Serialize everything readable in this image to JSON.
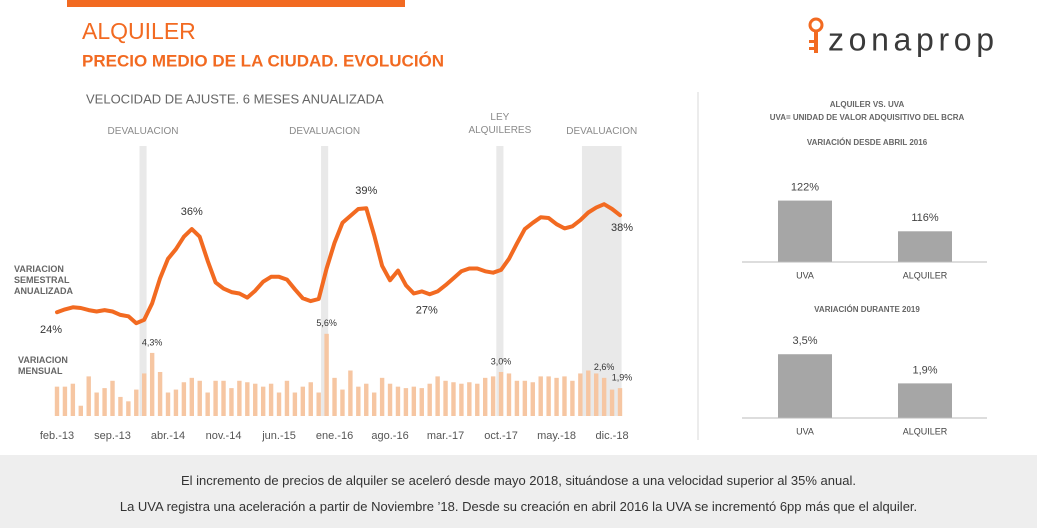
{
  "header": {
    "title": "ALQUILER",
    "subtitle": "PRECIO MEDIO DE LA CIUDAD. EVOLUCIÓN",
    "logo": "zonaprop"
  },
  "panel": {
    "title": "ALQUILER VS. UVA",
    "subtitle": "UVA= UNIDAD DE VALOR ADQUISITIVO DEL BCRA"
  },
  "footer": [
    "El incremento de precios de alquiler se aceleró desde mayo 2018, situándose a una velocidad superior al 35% anual.",
    "La UVA registra una aceleración a partir de Noviembre ’18. Desde su creación en abril 2016 la UVA se incrementó 6pp más que el alquiler."
  ],
  "chart_data": [
    {
      "type": "combo",
      "title": "VELOCIDAD DE AJUSTE. 6 MESES ANUALIZADA",
      "categories": [
        "feb.-13",
        null,
        null,
        null,
        null,
        null,
        null,
        "sep.-13",
        null,
        null,
        null,
        null,
        null,
        null,
        "abr.-14",
        null,
        null,
        null,
        null,
        null,
        null,
        "nov.-14",
        null,
        null,
        null,
        null,
        null,
        null,
        "jun.-15",
        null,
        null,
        null,
        null,
        null,
        null,
        "ene.-16",
        null,
        null,
        null,
        null,
        null,
        null,
        "ago.-16",
        null,
        null,
        null,
        null,
        null,
        null,
        "mar.-17",
        null,
        null,
        null,
        null,
        null,
        null,
        "oct.-17",
        null,
        null,
        null,
        null,
        null,
        null,
        "may.-18",
        null,
        null,
        null,
        null,
        null,
        null,
        "dic.-18",
        null
      ],
      "annotations": [
        "DEVALUACION",
        "DEVALUACION",
        "LEY ALQUILERES",
        "DEVALUACION"
      ],
      "ylim": [
        9,
        48
      ],
      "y2lim": [
        0,
        18.4
      ],
      "series": [
        {
          "name": "VARIACION SEMESTRAL ANUALIZADA",
          "type": "line",
          "color": "#f26a21",
          "values": [
            24,
            24.4,
            24.7,
            24.6,
            24.3,
            24.1,
            24.3,
            24.1,
            23.6,
            23.4,
            22.4,
            22.9,
            25.3,
            28.9,
            31.7,
            33.1,
            34.9,
            36,
            34.9,
            31.4,
            28.3,
            27.4,
            26.9,
            26.7,
            26.1,
            27.1,
            28.4,
            29.1,
            29.1,
            28.7,
            27.3,
            26,
            25.6,
            25.9,
            30.3,
            34,
            36.9,
            37.9,
            38.9,
            39,
            35.1,
            30.7,
            28.6,
            30,
            27.9,
            26.7,
            27,
            26.6,
            27,
            27.9,
            28.9,
            29.9,
            30.3,
            30.3,
            29.9,
            29.7,
            30.1,
            31.7,
            33.9,
            36,
            36.9,
            37.7,
            37.6,
            36.7,
            36.1,
            36.4,
            37.3,
            38.4,
            39.1,
            39.6,
            38.9,
            38
          ],
          "value_labels": [
            "24%",
            null,
            null,
            null,
            null,
            null,
            null,
            null,
            null,
            null,
            null,
            null,
            null,
            null,
            null,
            null,
            null,
            "36%",
            null,
            null,
            null,
            null,
            null,
            null,
            null,
            null,
            null,
            null,
            null,
            null,
            null,
            null,
            null,
            null,
            null,
            null,
            null,
            null,
            null,
            "39%",
            null,
            null,
            null,
            null,
            null,
            null,
            "27%",
            null,
            null,
            null,
            null,
            null,
            null,
            null,
            null,
            null,
            null,
            null,
            null,
            null,
            null,
            null,
            null,
            null,
            null,
            null,
            null,
            null,
            null,
            null,
            null,
            "38%"
          ]
        },
        {
          "name": "VARIACION MENSUAL",
          "type": "bar",
          "axis": "y2",
          "color": "#f6c6a2",
          "values": [
            2,
            2,
            2.2,
            0.7,
            2.7,
            1.6,
            1.9,
            2.4,
            1.3,
            1,
            1.8,
            2.9,
            4.3,
            3,
            1.6,
            1.8,
            2.3,
            2.6,
            2.4,
            1.6,
            2.4,
            2.4,
            1.9,
            2.4,
            2.3,
            2.2,
            2,
            2.2,
            1.6,
            2.4,
            1.6,
            2,
            2.3,
            1.6,
            5.6,
            2.6,
            1.8,
            3.1,
            2,
            2.2,
            1.6,
            2.6,
            2.2,
            2,
            1.9,
            2,
            1.9,
            2.2,
            2.7,
            2.4,
            2.3,
            2.2,
            2.3,
            2.2,
            2.6,
            2.7,
            3,
            2.9,
            2.4,
            2.4,
            2.3,
            2.7,
            2.7,
            2.6,
            2.7,
            2.4,
            2.9,
            3.1,
            2.9,
            2.6,
            1.8,
            1.9
          ],
          "value_labels": [
            null,
            null,
            null,
            null,
            null,
            null,
            null,
            null,
            null,
            null,
            null,
            null,
            "4,3%",
            null,
            null,
            null,
            null,
            null,
            null,
            null,
            null,
            null,
            null,
            null,
            null,
            null,
            null,
            null,
            null,
            null,
            null,
            null,
            null,
            null,
            "5,6%",
            null,
            null,
            null,
            null,
            null,
            null,
            null,
            null,
            null,
            null,
            null,
            null,
            null,
            null,
            null,
            null,
            null,
            null,
            null,
            null,
            null,
            "3,0%",
            null,
            null,
            null,
            null,
            null,
            null,
            null,
            null,
            null,
            null,
            null,
            null,
            "2,6%",
            null,
            "1,9%"
          ]
        }
      ]
    },
    {
      "type": "bar",
      "title": "VARIACIÓN DESDE ABRIL 2016",
      "categories": [
        "UVA",
        "ALQUILER"
      ],
      "values": [
        122,
        116
      ],
      "value_labels": [
        "122%",
        "116%"
      ],
      "color": "#a6a6a6",
      "ylim": [
        110,
        127
      ]
    },
    {
      "type": "bar",
      "title": "VARIACIÓN DURANTE 2019",
      "categories": [
        "UVA",
        "ALQUILER"
      ],
      "values": [
        3.5,
        1.9
      ],
      "value_labels": [
        "3,5%",
        "1,9%"
      ],
      "color": "#a6a6a6",
      "ylim": [
        0,
        4.5
      ]
    }
  ]
}
